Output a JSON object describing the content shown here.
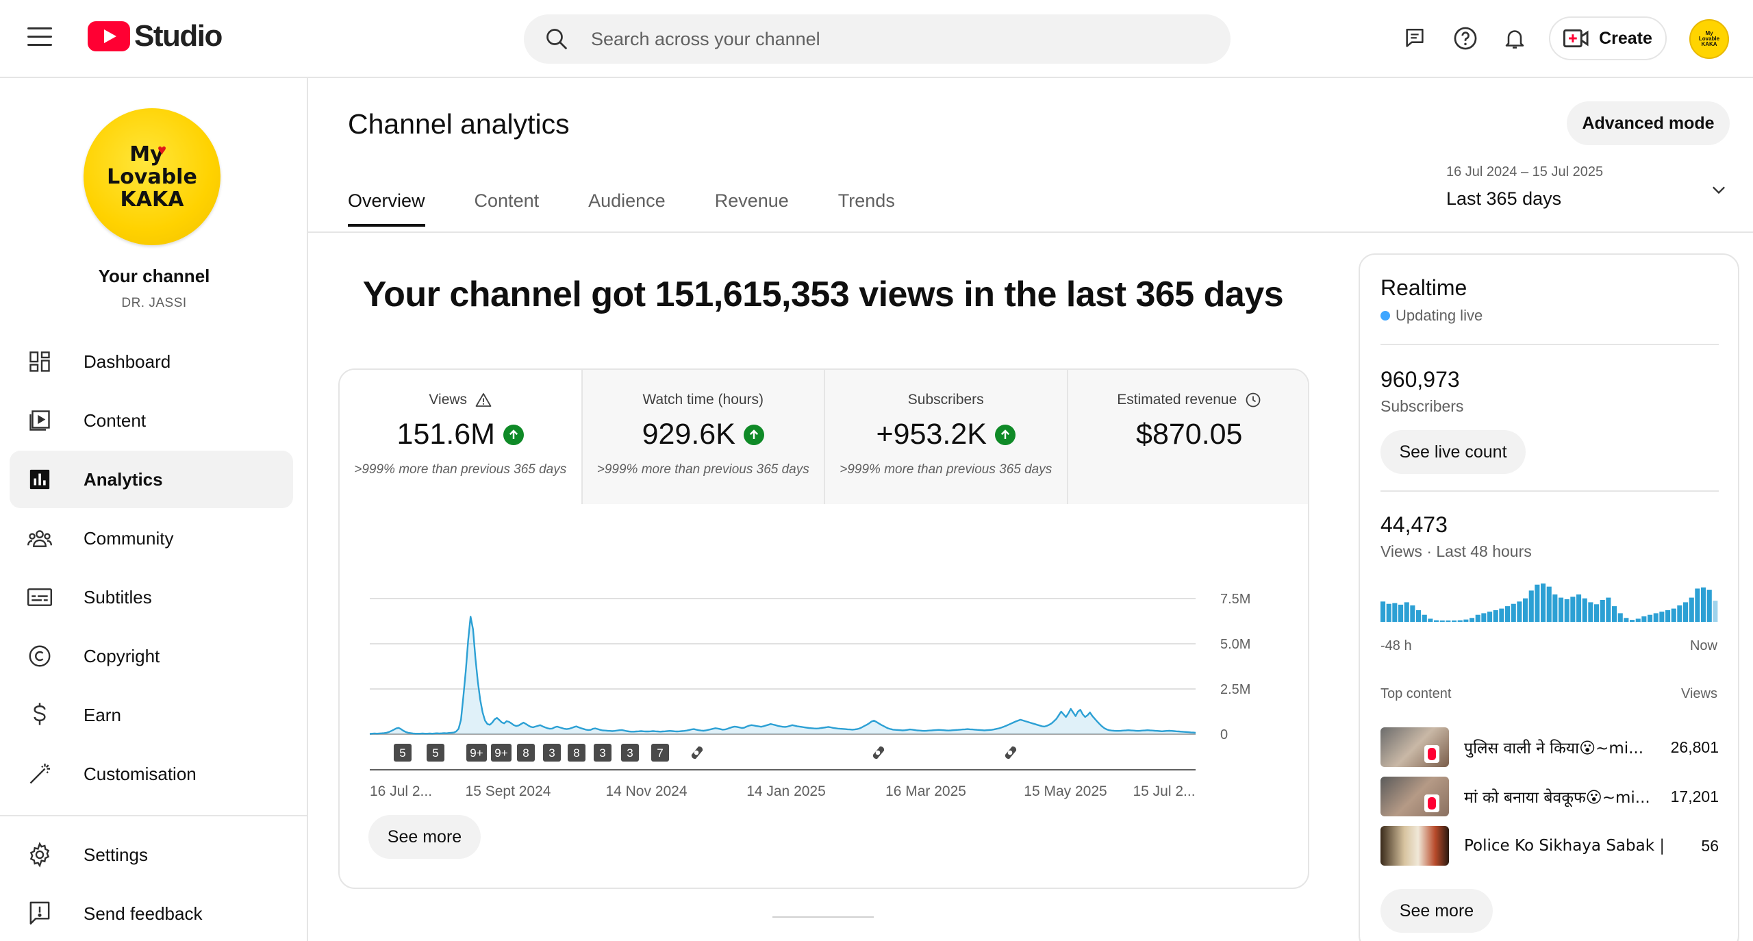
{
  "header": {
    "logo_text": "Studio",
    "search_placeholder": "Search across your channel",
    "create_label": "Create",
    "avatar_text": "My Lovable KAKA"
  },
  "sidebar": {
    "avatar_lines": [
      "My",
      "Lovable",
      "KAKA"
    ],
    "your_channel": "Your channel",
    "channel_name": "DR. JASSI",
    "items": [
      {
        "label": "Dashboard",
        "icon": "dashboard-icon"
      },
      {
        "label": "Content",
        "icon": "content-icon"
      },
      {
        "label": "Analytics",
        "icon": "analytics-icon",
        "active": true
      },
      {
        "label": "Community",
        "icon": "community-icon"
      },
      {
        "label": "Subtitles",
        "icon": "subtitles-icon"
      },
      {
        "label": "Copyright",
        "icon": "copyright-icon"
      },
      {
        "label": "Earn",
        "icon": "earn-icon"
      },
      {
        "label": "Customisation",
        "icon": "customisation-icon"
      }
    ],
    "bottom_items": [
      {
        "label": "Settings",
        "icon": "settings-icon"
      },
      {
        "label": "Send feedback",
        "icon": "feedback-icon"
      }
    ]
  },
  "main": {
    "title": "Channel analytics",
    "advanced_mode": "Advanced mode",
    "tabs": [
      {
        "label": "Overview",
        "active": true
      },
      {
        "label": "Content"
      },
      {
        "label": "Audience"
      },
      {
        "label": "Revenue"
      },
      {
        "label": "Trends"
      }
    ],
    "date_range": {
      "range": "16 Jul 2024 – 15 Jul 2025",
      "label": "Last 365 days"
    },
    "headline": "Your channel got 151,615,353 views in the last 365 days",
    "metrics": [
      {
        "label": "Views",
        "value": "151.6M",
        "note": ">999% more than previous 365 days",
        "trend": "up",
        "label_icon": "warning-icon"
      },
      {
        "label": "Watch time (hours)",
        "value": "929.6K",
        "note": ">999% more than previous 365 days",
        "trend": "up"
      },
      {
        "label": "Subscribers",
        "value": "+953.2K",
        "note": ">999% more than previous 365 days",
        "trend": "up"
      },
      {
        "label": "Estimated revenue",
        "value": "$870.05",
        "note": "",
        "label_icon": "clock-icon"
      }
    ],
    "see_more": "See more"
  },
  "chart_data": {
    "type": "line",
    "title": "",
    "xlabel": "",
    "ylabel": "",
    "x_ticks": [
      "16 Jul 2...",
      "15 Sept 2024",
      "14 Nov 2024",
      "14 Jan 2025",
      "16 Mar 2025",
      "15 May 2025",
      "15 Jul 2..."
    ],
    "y_ticks": [
      "7.5M",
      "5.0M",
      "2.5M",
      "0"
    ],
    "ylim": [
      0,
      7500000
    ],
    "grid": true,
    "color": "#2ca0d4",
    "series": [
      {
        "values": [
          20000,
          30000,
          40000,
          30000,
          40000,
          50000,
          60000,
          80000,
          120000,
          180000,
          250000,
          320000,
          350000,
          280000,
          190000,
          120000,
          80000,
          60000,
          40000,
          30000,
          30000,
          30000,
          40000,
          30000,
          30000,
          40000,
          30000,
          40000,
          50000,
          40000,
          50000,
          60000,
          50000,
          70000,
          80000,
          90000,
          150000,
          300000,
          800000,
          2100000,
          3500000,
          5200000,
          6500000,
          5800000,
          4200000,
          2900000,
          1900000,
          1200000,
          750000,
          560000,
          520000,
          640000,
          820000,
          900000,
          780000,
          650000,
          600000,
          720000,
          680000,
          600000,
          500000,
          450000,
          480000,
          560000,
          640000,
          570000,
          480000,
          410000,
          380000,
          420000,
          460000,
          500000,
          430000,
          380000,
          330000,
          300000,
          310000,
          380000,
          420000,
          380000,
          340000,
          300000,
          280000,
          300000,
          340000,
          390000,
          430000,
          380000,
          330000,
          290000,
          250000,
          230000,
          240000,
          300000,
          320000,
          280000,
          240000,
          210000,
          200000,
          190000,
          180000,
          170000,
          180000,
          200000,
          220000,
          230000,
          200000,
          170000,
          150000,
          140000,
          140000,
          150000,
          160000,
          170000,
          160000,
          150000,
          150000,
          160000,
          170000,
          160000,
          150000,
          140000,
          150000,
          160000,
          170000,
          180000,
          170000,
          160000,
          150000,
          160000,
          170000,
          180000,
          200000,
          230000,
          260000,
          280000,
          250000,
          220000,
          200000,
          190000,
          210000,
          240000,
          270000,
          300000,
          330000,
          310000,
          280000,
          250000,
          260000,
          300000,
          350000,
          390000,
          420000,
          400000,
          370000,
          340000,
          360000,
          420000,
          470000,
          500000,
          480000,
          450000,
          430000,
          410000,
          440000,
          480000,
          520000,
          560000,
          530000,
          500000,
          460000,
          430000,
          410000,
          400000,
          420000,
          460000,
          500000,
          470000,
          440000,
          420000,
          400000,
          380000,
          360000,
          340000,
          330000,
          320000,
          310000,
          320000,
          340000,
          360000,
          380000,
          400000,
          380000,
          350000,
          330000,
          310000,
          300000,
          290000,
          280000,
          270000,
          260000,
          250000,
          260000,
          280000,
          320000,
          380000,
          450000,
          520000,
          600000,
          700000,
          750000,
          680000,
          600000,
          520000,
          450000,
          380000,
          320000,
          280000,
          250000,
          240000,
          230000,
          220000,
          210000,
          220000,
          240000,
          260000,
          250000,
          230000,
          210000,
          200000,
          190000,
          180000,
          190000,
          200000,
          210000,
          220000,
          230000,
          240000,
          230000,
          220000,
          210000,
          200000,
          210000,
          220000,
          230000,
          240000,
          250000,
          260000,
          270000,
          280000,
          270000,
          260000,
          250000,
          240000,
          230000,
          220000,
          210000,
          220000,
          230000,
          240000,
          260000,
          290000,
          320000,
          360000,
          410000,
          460000,
          520000,
          580000,
          640000,
          700000,
          750000,
          800000,
          760000,
          720000,
          680000,
          640000,
          600000,
          560000,
          520000,
          480000,
          440000,
          420000,
          460000,
          520000,
          600000,
          720000,
          850000,
          1050000,
          1250000,
          1100000,
          950000,
          1150000,
          1400000,
          1200000,
          1000000,
          1250000,
          1350000,
          1100000,
          950000,
          1050000,
          1200000,
          1000000,
          850000,
          700000,
          560000,
          430000,
          330000,
          260000,
          220000,
          200000,
          190000,
          180000,
          180000,
          190000,
          200000,
          210000,
          220000,
          210000,
          200000,
          190000,
          180000,
          190000,
          200000,
          210000,
          220000,
          210000,
          200000,
          190000,
          180000,
          170000,
          160000,
          170000,
          180000,
          190000,
          180000,
          170000,
          160000,
          150000,
          140000,
          130000,
          120000,
          110000,
          100000,
          90000,
          80000
        ]
      }
    ],
    "upload_markers": [
      {
        "label": "5",
        "type": "count"
      },
      {
        "label": "5",
        "type": "count"
      },
      {
        "label": "9+",
        "type": "count"
      },
      {
        "label": "9+",
        "type": "count"
      },
      {
        "label": "8",
        "type": "count"
      },
      {
        "label": "3",
        "type": "count"
      },
      {
        "label": "8",
        "type": "count"
      },
      {
        "label": "3",
        "type": "count"
      },
      {
        "label": "3",
        "type": "count"
      },
      {
        "label": "7",
        "type": "count"
      },
      {
        "label": "",
        "type": "shorts"
      },
      {
        "label": "",
        "type": "shorts"
      },
      {
        "label": "",
        "type": "shorts"
      }
    ]
  },
  "realtime": {
    "title": "Realtime",
    "status": "Updating live",
    "subscribers_value": "960,973",
    "subscribers_label": "Subscribers",
    "see_live_count": "See live count",
    "views_value": "44,473",
    "views_label": "Views · Last 48 hours",
    "axis_start": "-48 h",
    "axis_end": "Now",
    "bars": [
      52,
      46,
      48,
      44,
      50,
      42,
      30,
      18,
      8,
      4,
      3,
      2,
      3,
      4,
      6,
      10,
      18,
      22,
      26,
      30,
      34,
      40,
      46,
      52,
      60,
      80,
      95,
      98,
      90,
      70,
      62,
      58,
      64,
      70,
      60,
      50,
      45,
      56,
      62,
      40,
      22,
      10,
      5,
      8,
      14,
      18,
      22,
      26,
      30,
      34,
      42,
      50,
      62,
      85,
      88,
      82,
      54
    ],
    "top_content_label": "Top content",
    "views_col_label": "Views",
    "top_content": [
      {
        "title": "पुलिस वाली ने किया😮~mi...",
        "views": "26,801"
      },
      {
        "title": "मां को बनाया बेवकूफ😮~mi...",
        "views": "17,201"
      },
      {
        "title": "Police Ko Sikhaya Sabak | ...",
        "views": "56"
      }
    ],
    "see_more": "See more"
  }
}
